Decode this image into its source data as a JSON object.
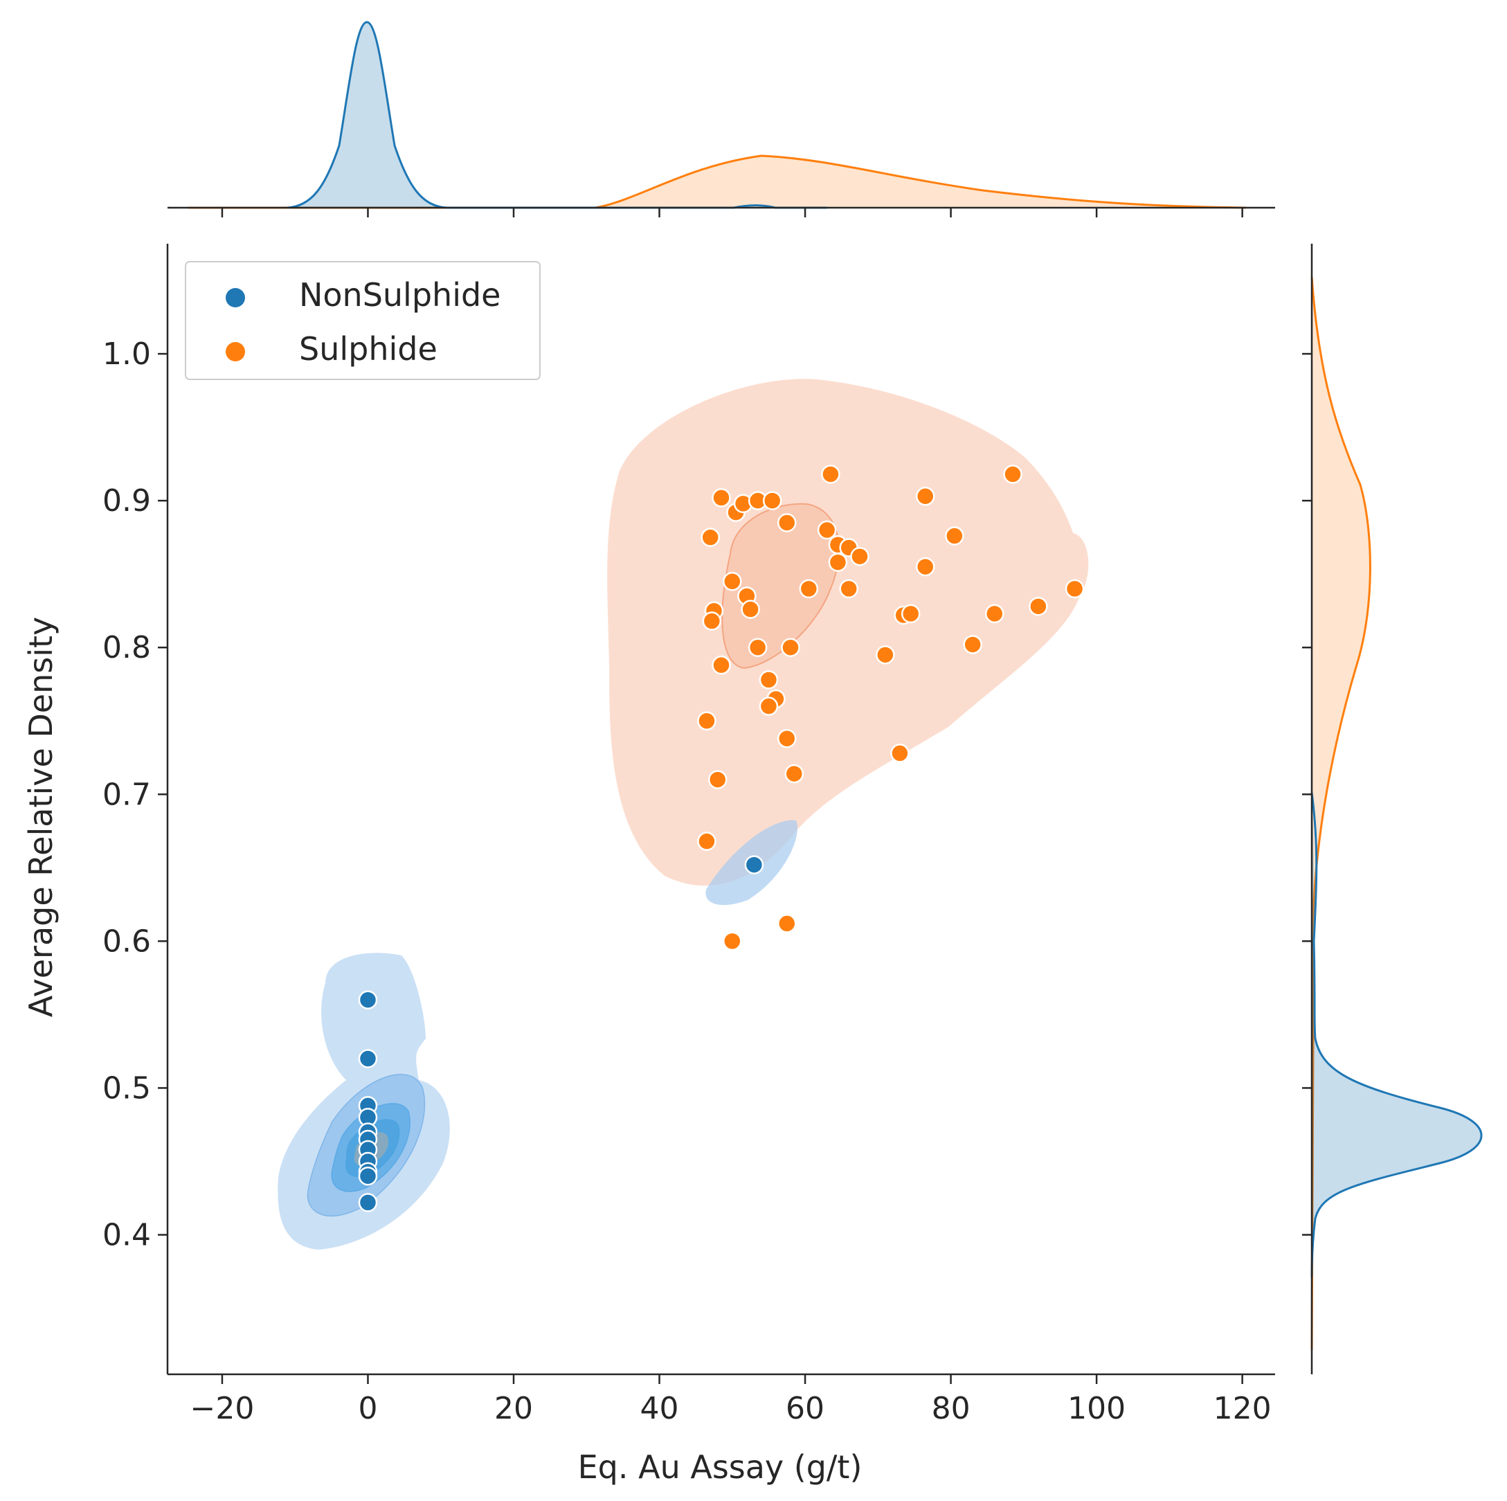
{
  "chart_data": {
    "type": "scatter",
    "subtype": "jointplot-kde",
    "xlabel": "Eq. Au Assay (g/t)",
    "ylabel": "Average Relative Density",
    "xlim": [
      -27.5,
      124.5
    ],
    "ylim": [
      0.305,
      1.075
    ],
    "x_ticks": [
      -20,
      0,
      20,
      40,
      60,
      80,
      100,
      120
    ],
    "y_ticks": [
      0.4,
      0.5,
      0.6,
      0.7,
      0.8,
      0.9,
      1.0
    ],
    "x_tick_labels": [
      "−20",
      "0",
      "20",
      "40",
      "60",
      "80",
      "100",
      "120"
    ],
    "y_tick_labels": [
      "0.4",
      "0.5",
      "0.6",
      "0.7",
      "0.8",
      "0.9",
      "1.0"
    ],
    "legend": {
      "position": "top-left",
      "entries": [
        {
          "label": "NonSulphide",
          "color": "#1f77b4"
        },
        {
          "label": "Sulphide",
          "color": "#ff7f0e"
        }
      ]
    },
    "series": [
      {
        "name": "NonSulphide",
        "color": "#1f77b4",
        "points": [
          [
            0,
            0.56
          ],
          [
            0,
            0.52
          ],
          [
            0,
            0.488
          ],
          [
            0,
            0.48
          ],
          [
            0,
            0.47
          ],
          [
            0,
            0.465
          ],
          [
            0,
            0.458
          ],
          [
            0,
            0.45
          ],
          [
            0,
            0.443
          ],
          [
            0,
            0.44
          ],
          [
            0,
            0.422
          ],
          [
            53,
            0.652
          ]
        ],
        "marginal_x_peak": 0,
        "marginal_y_peak": 0.46
      },
      {
        "name": "Sulphide",
        "color": "#ff7f0e",
        "points": [
          [
            48.5,
            0.902
          ],
          [
            50.5,
            0.892
          ],
          [
            51.5,
            0.898
          ],
          [
            53.5,
            0.9
          ],
          [
            55.5,
            0.9
          ],
          [
            63.5,
            0.918
          ],
          [
            76.5,
            0.903
          ],
          [
            88.5,
            0.918
          ],
          [
            47,
            0.875
          ],
          [
            57.5,
            0.885
          ],
          [
            63,
            0.88
          ],
          [
            64.5,
            0.87
          ],
          [
            66,
            0.868
          ],
          [
            67.5,
            0.862
          ],
          [
            64.5,
            0.858
          ],
          [
            80.5,
            0.876
          ],
          [
            76.5,
            0.855
          ],
          [
            50,
            0.845
          ],
          [
            52,
            0.835
          ],
          [
            60.5,
            0.84
          ],
          [
            66,
            0.84
          ],
          [
            97,
            0.84
          ],
          [
            47.5,
            0.825
          ],
          [
            52.5,
            0.826
          ],
          [
            47.2,
            0.818
          ],
          [
            73.5,
            0.822
          ],
          [
            74.5,
            0.823
          ],
          [
            86,
            0.823
          ],
          [
            92,
            0.828
          ],
          [
            53.5,
            0.8
          ],
          [
            58,
            0.8
          ],
          [
            83,
            0.802
          ],
          [
            71,
            0.795
          ],
          [
            48.5,
            0.788
          ],
          [
            55,
            0.778
          ],
          [
            56,
            0.765
          ],
          [
            55,
            0.76
          ],
          [
            46.5,
            0.75
          ],
          [
            57.5,
            0.738
          ],
          [
            48,
            0.71
          ],
          [
            58.5,
            0.714
          ],
          [
            73,
            0.728
          ],
          [
            46.5,
            0.668
          ],
          [
            57.5,
            0.612
          ],
          [
            50,
            0.6
          ]
        ],
        "marginal_x_peak": 54,
        "marginal_y_peak": 0.85
      }
    ]
  }
}
